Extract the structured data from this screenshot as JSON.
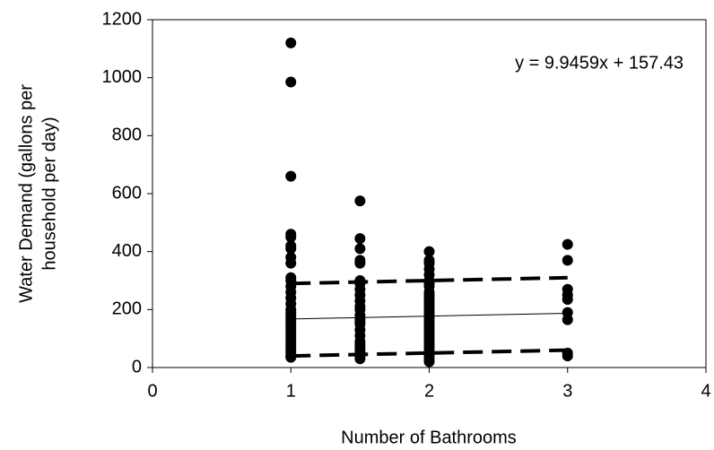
{
  "chart_data": {
    "type": "scatter",
    "x_label": "Number of Bathrooms",
    "y_label": [
      "Water Demand (gallons per",
      "household per day)"
    ],
    "annotation": "y = 9.9459x + 157.43",
    "xlim": [
      0,
      4
    ],
    "ylim": [
      0,
      1200
    ],
    "xticks": [
      0,
      1,
      2,
      3,
      4
    ],
    "yticks": [
      0,
      200,
      400,
      600,
      800,
      1000,
      1200
    ],
    "grid": false,
    "series": [
      {
        "mode": "markers",
        "color": "#000000",
        "x": [
          1,
          1,
          1,
          1,
          1,
          1,
          1,
          1,
          1,
          1,
          1,
          1,
          1,
          1,
          1,
          1,
          1,
          1,
          1,
          1,
          1,
          1,
          1,
          1,
          1,
          1,
          1,
          1,
          1,
          1,
          1,
          1,
          1,
          1.5,
          1.5,
          1.5,
          1.5,
          1.5,
          1.5,
          1.5,
          1.5,
          1.5,
          1.5,
          1.5,
          1.5,
          1.5,
          1.5,
          1.5,
          1.5,
          1.5,
          1.5,
          1.5,
          1.5,
          1.5,
          1.5,
          1.5,
          1.5,
          1.5,
          2,
          2,
          2,
          2,
          2,
          2,
          2,
          2,
          2,
          2,
          2,
          2,
          2,
          2,
          2,
          2,
          2,
          2,
          2,
          2,
          2,
          2,
          2,
          2,
          2,
          2,
          2,
          2,
          2,
          2,
          2,
          2,
          2,
          3,
          3,
          3,
          3,
          3,
          3,
          3,
          3,
          3
        ],
        "values": [
          1120,
          985,
          660,
          460,
          450,
          420,
          410,
          380,
          360,
          310,
          300,
          280,
          260,
          240,
          220,
          200,
          190,
          180,
          170,
          160,
          150,
          140,
          130,
          120,
          110,
          100,
          90,
          80,
          70,
          60,
          50,
          40,
          35,
          575,
          445,
          410,
          370,
          360,
          300,
          290,
          270,
          250,
          230,
          210,
          200,
          180,
          170,
          160,
          150,
          130,
          110,
          90,
          80,
          70,
          60,
          50,
          40,
          30,
          400,
          370,
          360,
          340,
          320,
          300,
          290,
          280,
          260,
          250,
          240,
          230,
          220,
          210,
          200,
          190,
          180,
          170,
          160,
          150,
          140,
          130,
          120,
          110,
          100,
          90,
          80,
          70,
          60,
          50,
          40,
          30,
          20,
          425,
          370,
          270,
          250,
          235,
          190,
          165,
          50,
          40
        ]
      },
      {
        "mode": "line",
        "color": "#000000",
        "dashed": false,
        "width": 1,
        "x": [
          1,
          3
        ],
        "values": [
          167.4,
          187.3
        ]
      },
      {
        "mode": "line",
        "color": "#000000",
        "dashed": true,
        "width": 4,
        "x": [
          1,
          3
        ],
        "values": [
          290,
          310
        ]
      },
      {
        "mode": "line",
        "color": "#000000",
        "dashed": true,
        "width": 4,
        "x": [
          1,
          3
        ],
        "values": [
          40,
          60
        ]
      }
    ]
  }
}
